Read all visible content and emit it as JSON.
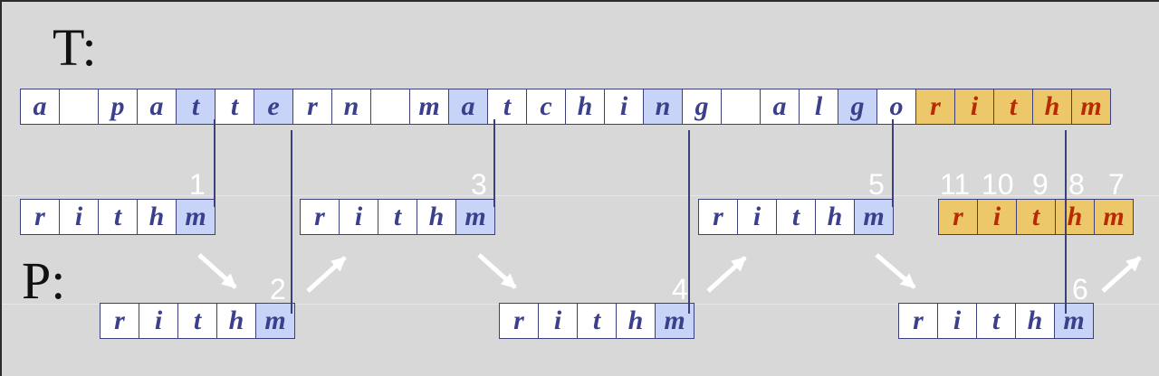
{
  "labels": {
    "text": "T:",
    "pattern": "P:"
  },
  "text_chars": [
    "a",
    "",
    "p",
    "a",
    "t",
    "t",
    "e",
    "r",
    "n",
    "",
    "m",
    "a",
    "t",
    "c",
    "h",
    "i",
    "n",
    "g",
    "",
    "a",
    "l",
    "g",
    "o",
    "r",
    "i",
    "t",
    "h",
    "m"
  ],
  "pattern_chars": [
    "r",
    "i",
    "t",
    "h",
    "m"
  ],
  "step_numbers": [
    "1",
    "2",
    "3",
    "4",
    "5",
    "6",
    "7",
    "8",
    "9",
    "10",
    "11"
  ],
  "colors": {
    "background": "#d8d8d8",
    "cell": "#ffffff",
    "cell_highlight": "#c7d3f7",
    "cell_match": "#ecc86a",
    "letter": "#3b3f8c",
    "letter_match": "#b82a00",
    "arrow": "#ffffff",
    "line": "#3c3f7a"
  }
}
